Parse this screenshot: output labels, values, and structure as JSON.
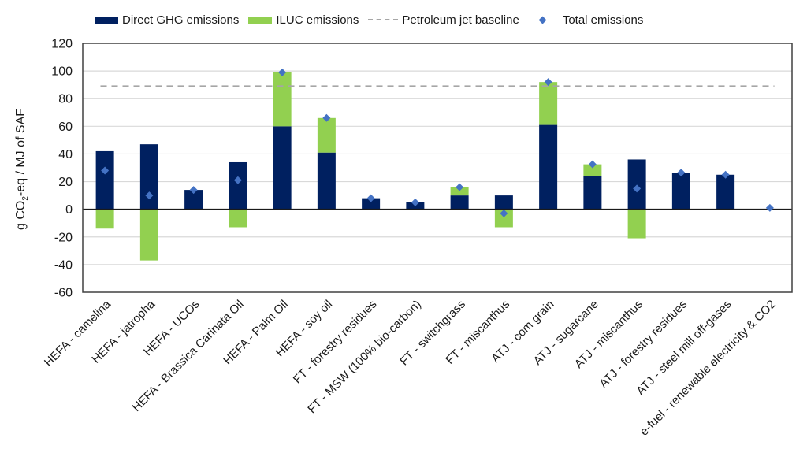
{
  "chart_data": {
    "type": "bar",
    "stacked": true,
    "title": "",
    "xlabel": "",
    "ylabel": "g CO2-eq / MJ of SAF",
    "ylabel_main": "g CO",
    "ylabel_sub": "2",
    "ylabel_rest": "-eq / MJ of SAF",
    "ylim": [
      -60,
      120
    ],
    "yticks": [
      -60,
      -40,
      -20,
      0,
      20,
      40,
      60,
      80,
      100,
      120
    ],
    "grid": true,
    "legend_position": "top",
    "categories": [
      "HEFA - camelina",
      "HEFA - jatropha",
      "HEFA - UCOs",
      "HEFA - Brassica Carinata Oil",
      "HEFA - Palm Oil",
      "HEFA - soy oil",
      "FT - forestry residues",
      "FT - MSW (100% bio-carbon)",
      "FT - switchgrass",
      "FT - miscanthus",
      "ATJ - com grain",
      "ATJ - sugarcane",
      "ATJ - miscanthus",
      "ATJ - forestry residues",
      "ATJ - steel mill off-gases",
      "e-fuel - renewable electricity & CO2"
    ],
    "series": [
      {
        "name": "Direct GHG emissions",
        "kind": "bar",
        "color": "#002060",
        "values": [
          42,
          47,
          14,
          34,
          60,
          41,
          8,
          5,
          10,
          10,
          61,
          24,
          36,
          26.5,
          25,
          0
        ]
      },
      {
        "name": "ILUC emissions",
        "kind": "bar",
        "color": "#92d050",
        "values": [
          -14,
          -37,
          0,
          -13,
          39,
          25,
          0,
          0,
          6,
          -13,
          31,
          8.5,
          -21,
          0,
          0,
          0
        ]
      },
      {
        "name": "Petroleum jet baseline",
        "kind": "line",
        "style": "dashed",
        "color": "#a6a6a6",
        "value": 89
      },
      {
        "name": "Total emissions",
        "kind": "scatter",
        "marker": "diamond",
        "color": "#4472c4",
        "values": [
          28,
          10,
          14,
          21,
          99,
          66,
          8,
          5,
          16,
          -3,
          92,
          32.5,
          15,
          26.5,
          25,
          1
        ]
      }
    ]
  }
}
